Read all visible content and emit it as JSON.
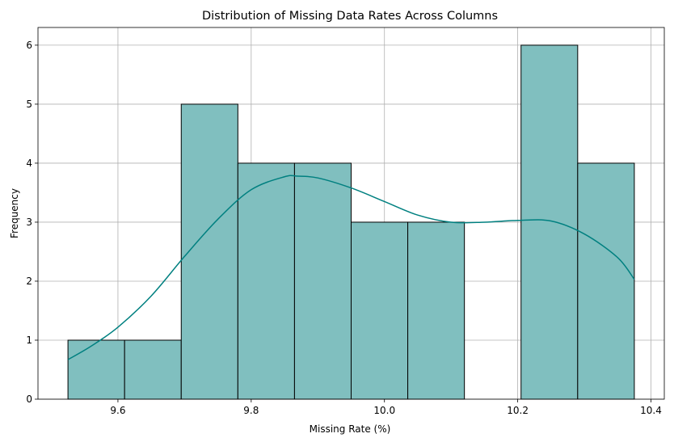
{
  "chart_data": {
    "type": "bar",
    "title": "Distribution of Missing Data Rates Across Columns",
    "xlabel": "Missing Rate (%)",
    "ylabel": "Frequency",
    "bin_edges": [
      9.525,
      9.61,
      9.695,
      9.78,
      9.865,
      9.95,
      10.035,
      10.12,
      10.205,
      10.29,
      10.375
    ],
    "values": [
      1,
      1,
      5,
      4,
      4,
      3,
      3,
      0,
      6,
      4
    ],
    "kde": {
      "x": [
        9.525,
        9.56,
        9.6,
        9.65,
        9.7,
        9.75,
        9.8,
        9.85,
        9.87,
        9.9,
        9.95,
        10.0,
        10.05,
        10.1,
        10.15,
        10.2,
        10.25,
        10.3,
        10.35,
        10.375
      ],
      "y": [
        0.67,
        0.9,
        1.22,
        1.75,
        2.42,
        3.05,
        3.55,
        3.77,
        3.78,
        3.75,
        3.58,
        3.35,
        3.12,
        3.0,
        3.0,
        3.03,
        3.02,
        2.8,
        2.4,
        2.03
      ]
    },
    "xlim": [
      9.48,
      10.42
    ],
    "ylim": [
      0,
      6.3
    ],
    "xticks": [
      9.6,
      9.8,
      10.0,
      10.2,
      10.4
    ],
    "xtick_labels": [
      "9.6",
      "9.8",
      "10.0",
      "10.2",
      "10.4"
    ],
    "yticks": [
      0,
      1,
      2,
      3,
      4,
      5,
      6
    ],
    "ytick_labels": [
      "0",
      "1",
      "2",
      "3",
      "4",
      "5",
      "6"
    ],
    "grid": true,
    "colors": {
      "bar_fill": "#80bfbf",
      "bar_edge": "#000000",
      "kde_line": "#008080",
      "grid": "#b0b0b0"
    }
  }
}
